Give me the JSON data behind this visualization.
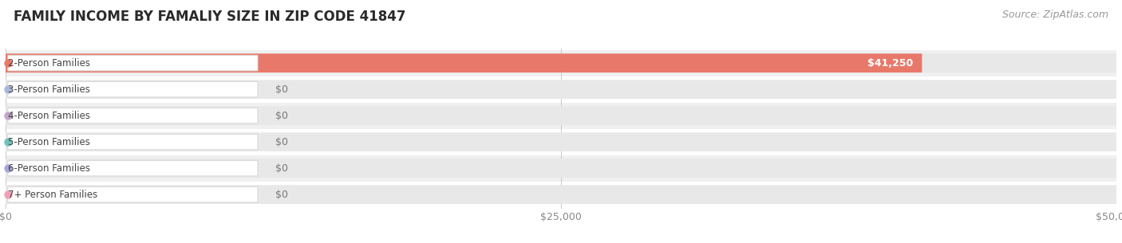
{
  "title": "FAMILY INCOME BY FAMALIY SIZE IN ZIP CODE 41847",
  "source": "Source: ZipAtlas.com",
  "categories": [
    "2-Person Families",
    "3-Person Families",
    "4-Person Families",
    "5-Person Families",
    "6-Person Families",
    "7+ Person Families"
  ],
  "values": [
    41250,
    0,
    0,
    0,
    0,
    0
  ],
  "bar_colors": [
    "#e8796a",
    "#a8b8d8",
    "#c4a8c8",
    "#72c4ba",
    "#a8a8d8",
    "#f0a0b8"
  ],
  "xlim": [
    0,
    50000
  ],
  "xtick_labels": [
    "$0",
    "$25,000",
    "$50,000"
  ],
  "xtick_values": [
    0,
    25000,
    50000
  ],
  "value_labels": [
    "$41,250",
    "$0",
    "$0",
    "$0",
    "$0",
    "$0"
  ],
  "background_color": "#ffffff",
  "row_bg_colors": [
    "#f0f0f0",
    "#ffffff",
    "#f0f0f0",
    "#ffffff",
    "#f0f0f0",
    "#ffffff"
  ],
  "bar_bg_color": "#e8e8e8",
  "title_fontsize": 12,
  "axis_fontsize": 9,
  "bar_label_fontsize": 9,
  "cat_fontsize": 8.5,
  "source_fontsize": 9
}
